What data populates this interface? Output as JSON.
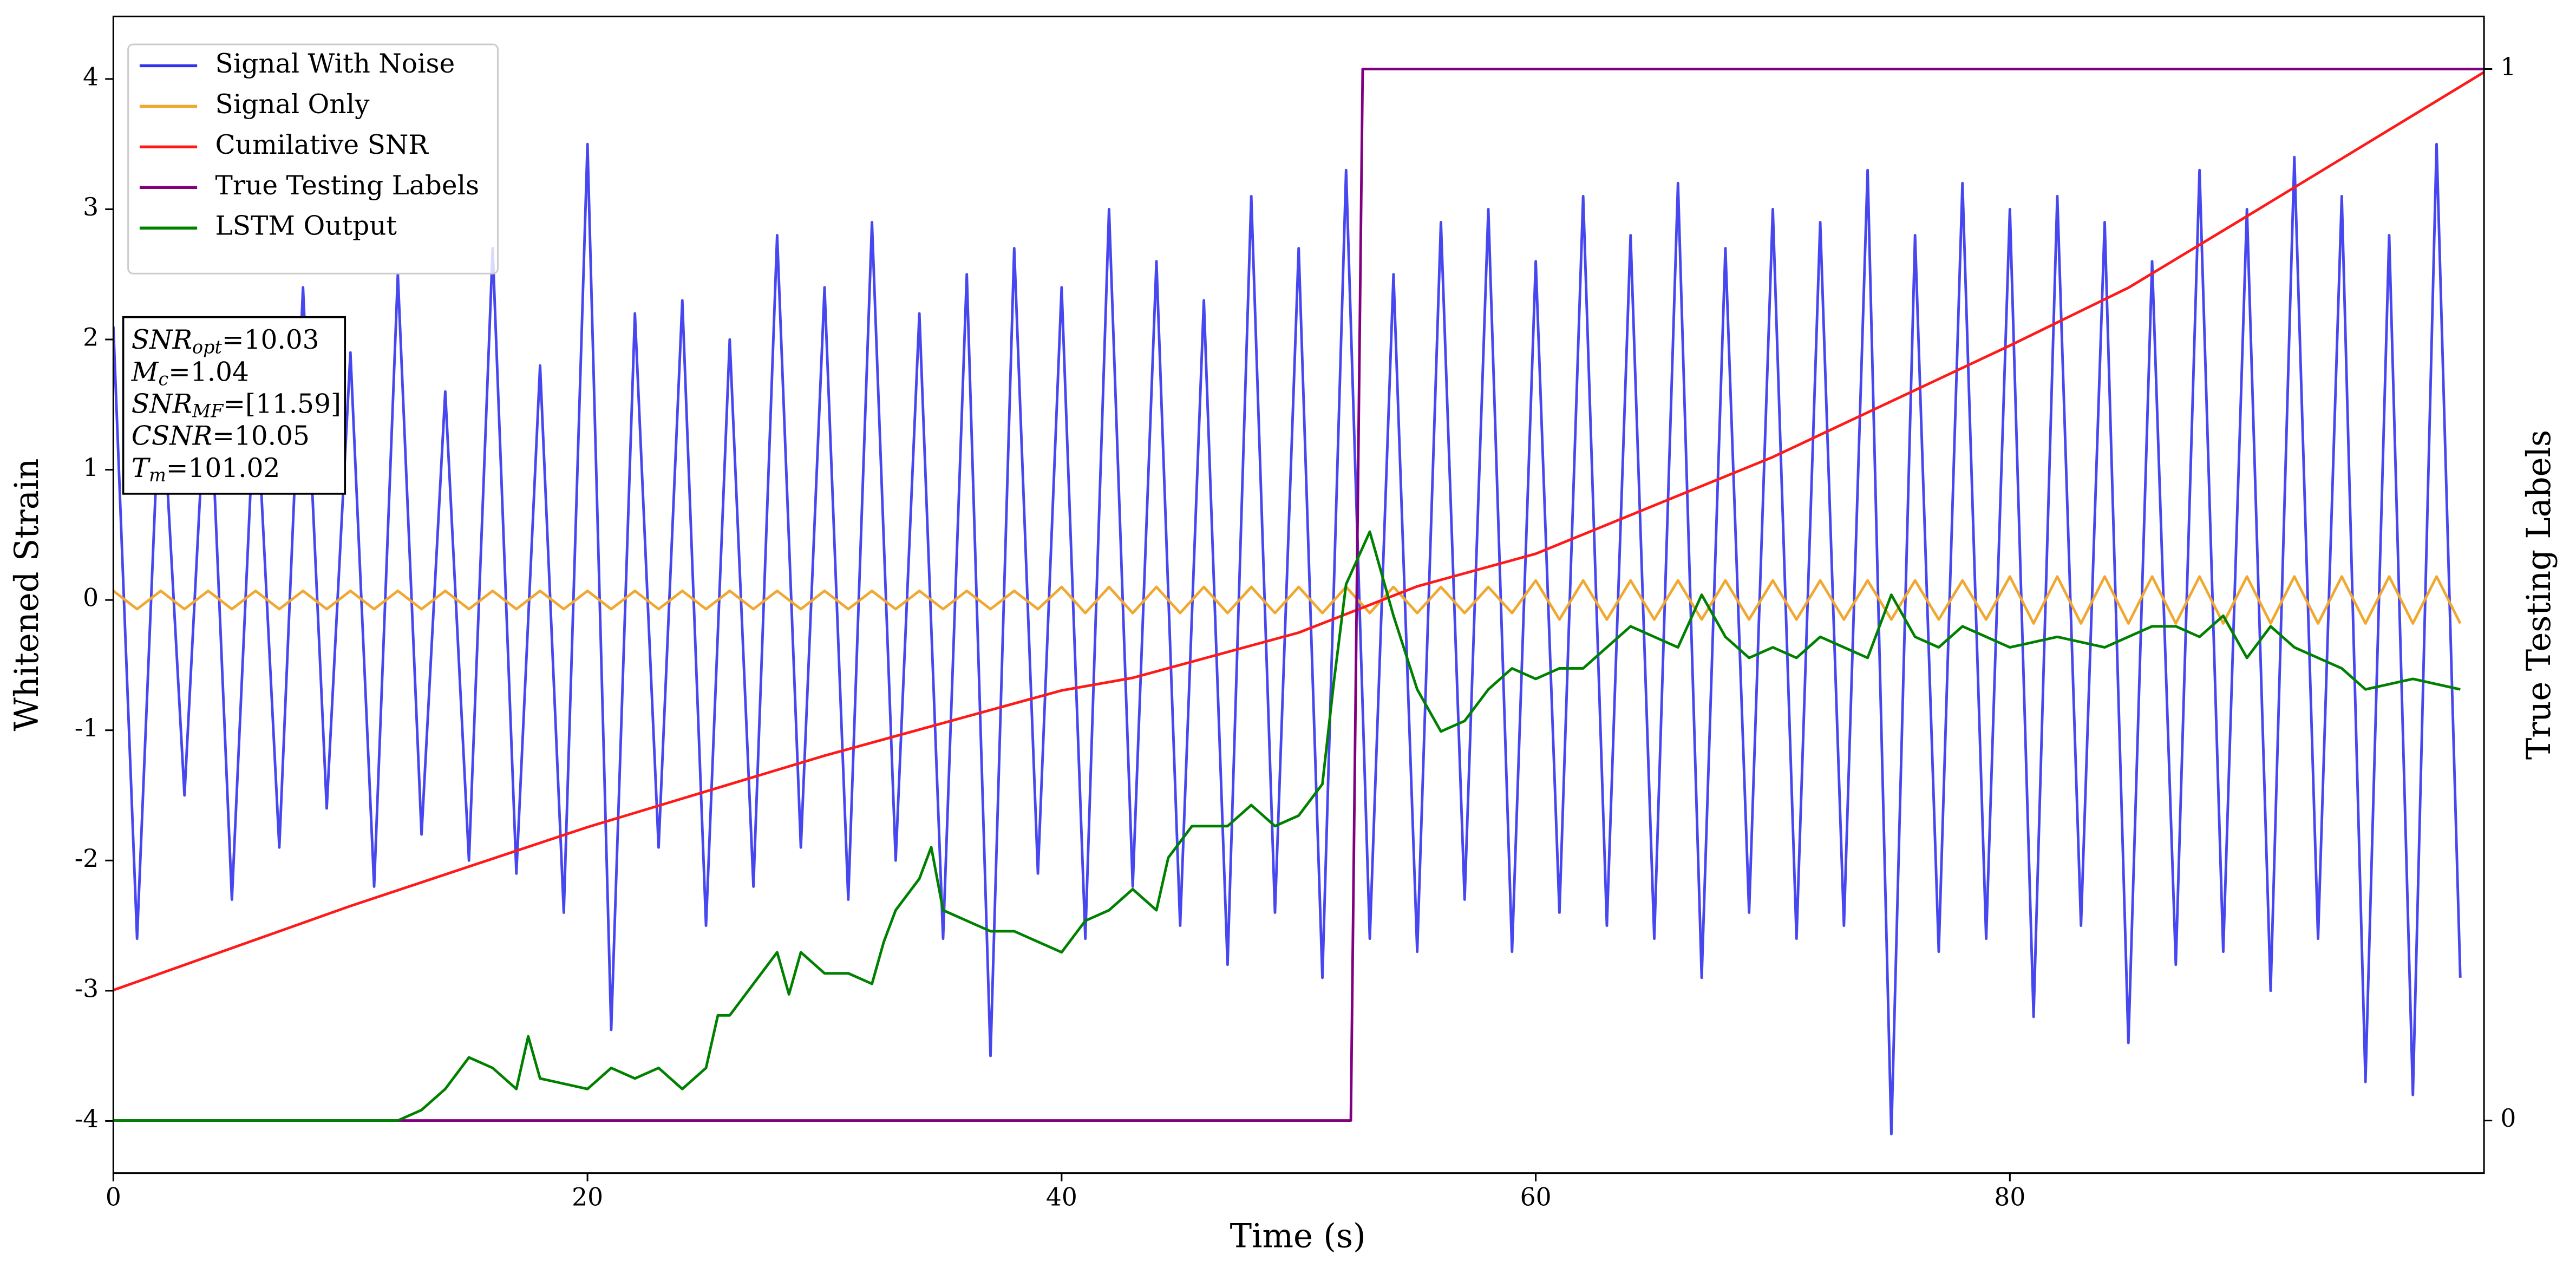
{
  "chart_data": {
    "type": "line",
    "xlabel": "Time (s)",
    "ylabel": "Whitened Strain",
    "y2label": "True Testing Labels",
    "xlim": [
      0,
      100
    ],
    "xticks": [
      0,
      20,
      40,
      60,
      80
    ],
    "ylim": [
      -4.4,
      4.48
    ],
    "yticks": [
      -4,
      -3,
      -2,
      -1,
      0,
      1,
      2,
      3,
      4
    ],
    "y2lim": [
      -0.05,
      1.05
    ],
    "y2ticks": [
      0,
      1
    ],
    "grid": false,
    "legend": "upper left",
    "annotations": [
      {
        "symbol": "SNR",
        "sub": "opt",
        "text": "=10.03"
      },
      {
        "symbol": "M",
        "sub": "c",
        "text": "=1.04"
      },
      {
        "symbol": "SNR",
        "sub": "MF",
        "text": "=[11.59]"
      },
      {
        "symbol": "CSNR",
        "text": "=10.05"
      },
      {
        "symbol": "T",
        "sub": "m",
        "text": "=101.02"
      }
    ],
    "series": [
      {
        "name": "Signal With Noise",
        "color": "#3333ee",
        "x": [
          0,
          1,
          2,
          3,
          4,
          5,
          6,
          7,
          8,
          9,
          10,
          11,
          12,
          13,
          14,
          15,
          16,
          17,
          18,
          19,
          20,
          21,
          22,
          23,
          24,
          25,
          26,
          27,
          28,
          29,
          30,
          31,
          32,
          33,
          34,
          35,
          36,
          37,
          38,
          39,
          40,
          41,
          42,
          43,
          44,
          45,
          46,
          47,
          48,
          49,
          50,
          51,
          52,
          53,
          54,
          55,
          56,
          57,
          58,
          59,
          60,
          61,
          62,
          63,
          64,
          65,
          66,
          67,
          68,
          69,
          70,
          71,
          72,
          73,
          74,
          75,
          76,
          77,
          78,
          79,
          80,
          81,
          82,
          83,
          84,
          85,
          86,
          87,
          88,
          89,
          90,
          91,
          92,
          93,
          94,
          95,
          96,
          97,
          98,
          99
        ],
        "values": [
          2.1,
          -2.6,
          1.8,
          -1.5,
          2.0,
          -2.3,
          1.7,
          -1.9,
          2.4,
          -1.6,
          1.9,
          -2.2,
          2.5,
          -1.8,
          1.6,
          -2.0,
          2.7,
          -2.1,
          1.8,
          -2.4,
          3.5,
          -3.3,
          2.2,
          -1.9,
          2.3,
          -2.5,
          2.0,
          -2.2,
          2.8,
          -1.9,
          2.4,
          -2.3,
          2.9,
          -2.0,
          2.2,
          -2.6,
          2.5,
          -3.5,
          2.7,
          -2.1,
          2.4,
          -2.6,
          3.0,
          -2.2,
          2.6,
          -2.5,
          2.3,
          -2.8,
          3.1,
          -2.4,
          2.7,
          -2.9,
          3.3,
          -2.6,
          2.5,
          -2.7,
          2.9,
          -2.3,
          3.0,
          -2.7,
          2.6,
          -2.4,
          3.1,
          -2.5,
          2.8,
          -2.6,
          3.2,
          -2.9,
          2.7,
          -2.4,
          3.0,
          -2.6,
          2.9,
          -2.5,
          3.3,
          -4.1,
          2.8,
          -2.7,
          3.2,
          -2.6,
          3.0,
          -3.2,
          3.1,
          -2.5,
          2.9,
          -3.4,
          2.6,
          -2.8,
          3.3,
          -2.7,
          3.0,
          -3.0,
          3.4,
          -2.6,
          3.1,
          -3.7,
          2.8,
          -3.8,
          3.5,
          -2.9
        ]
      },
      {
        "name": "Signal Only",
        "color": "#f0a830",
        "x": [
          0,
          1,
          2,
          3,
          4,
          5,
          6,
          7,
          8,
          9,
          10,
          11,
          12,
          13,
          14,
          15,
          16,
          17,
          18,
          19,
          20,
          21,
          22,
          23,
          24,
          25,
          26,
          27,
          28,
          29,
          30,
          31,
          32,
          33,
          34,
          35,
          36,
          37,
          38,
          39,
          40,
          41,
          42,
          43,
          44,
          45,
          46,
          47,
          48,
          49,
          50,
          51,
          52,
          53,
          54,
          55,
          56,
          57,
          58,
          59,
          60,
          61,
          62,
          63,
          64,
          65,
          66,
          67,
          68,
          69,
          70,
          71,
          72,
          73,
          74,
          75,
          76,
          77,
          78,
          79,
          80,
          81,
          82,
          83,
          84,
          85,
          86,
          87,
          88,
          89,
          90,
          91,
          92,
          93,
          94,
          95,
          96,
          97,
          98,
          99
        ],
        "values": [
          0.07,
          -0.07,
          0.07,
          -0.07,
          0.07,
          -0.07,
          0.07,
          -0.07,
          0.07,
          -0.07,
          0.07,
          -0.07,
          0.07,
          -0.07,
          0.07,
          -0.07,
          0.07,
          -0.07,
          0.07,
          -0.07,
          0.07,
          -0.07,
          0.07,
          -0.07,
          0.07,
          -0.07,
          0.07,
          -0.07,
          0.07,
          -0.07,
          0.07,
          -0.07,
          0.07,
          -0.07,
          0.07,
          -0.07,
          0.07,
          -0.07,
          0.07,
          -0.07,
          0.1,
          -0.1,
          0.1,
          -0.1,
          0.1,
          -0.1,
          0.1,
          -0.1,
          0.1,
          -0.1,
          0.1,
          -0.1,
          0.1,
          -0.1,
          0.1,
          -0.1,
          0.1,
          -0.1,
          0.1,
          -0.1,
          0.15,
          -0.15,
          0.15,
          -0.15,
          0.15,
          -0.15,
          0.15,
          -0.15,
          0.15,
          -0.15,
          0.15,
          -0.15,
          0.15,
          -0.15,
          0.15,
          -0.15,
          0.15,
          -0.15,
          0.15,
          -0.15,
          0.18,
          -0.18,
          0.18,
          -0.18,
          0.18,
          -0.18,
          0.18,
          -0.18,
          0.18,
          -0.18,
          0.18,
          -0.18,
          0.18,
          -0.18,
          0.18,
          -0.18,
          0.18,
          -0.18,
          0.18,
          -0.18
        ]
      },
      {
        "name": "Cumilative SNR",
        "color": "#ff1a1a",
        "axis": "y2",
        "x": [
          0,
          10,
          20,
          30,
          40,
          43,
          50,
          55,
          60,
          70,
          80,
          85,
          90,
          100
        ],
        "values": [
          0.124,
          0.204,
          0.279,
          0.347,
          0.409,
          0.421,
          0.464,
          0.508,
          0.539,
          0.631,
          0.737,
          0.792,
          0.86,
          0.997
        ]
      },
      {
        "name": "True Testing Labels",
        "color": "#800080",
        "axis": "y2",
        "x": [
          0,
          52.2,
          52.7,
          100
        ],
        "values": [
          0,
          0,
          1,
          1
        ]
      },
      {
        "name": "LSTM Output",
        "color": "#008000",
        "axis": "y2",
        "x": [
          0,
          12,
          13,
          14,
          15,
          16,
          17,
          17.5,
          18,
          20,
          21,
          22,
          23,
          24,
          25,
          25.5,
          26,
          27,
          28,
          28.5,
          29,
          30,
          31,
          32,
          32.5,
          33,
          34,
          34.5,
          35,
          36,
          37,
          38,
          39,
          40,
          41,
          42,
          43,
          44,
          44.5,
          45.5,
          46,
          47,
          48,
          49,
          50,
          51,
          51.5,
          52,
          53,
          54,
          55,
          56,
          57,
          58,
          59,
          60,
          61,
          62,
          63,
          64,
          66,
          67,
          68,
          69,
          70,
          71,
          72,
          73,
          74,
          75,
          76,
          77,
          78,
          80,
          82,
          84,
          86,
          87,
          88,
          89,
          90,
          91,
          92,
          93,
          94,
          95,
          97,
          99
        ],
        "values": [
          0,
          0,
          0.01,
          0.03,
          0.06,
          0.05,
          0.03,
          0.08,
          0.04,
          0.03,
          0.05,
          0.04,
          0.05,
          0.03,
          0.05,
          0.1,
          0.1,
          0.13,
          0.16,
          0.12,
          0.16,
          0.14,
          0.14,
          0.13,
          0.17,
          0.2,
          0.23,
          0.26,
          0.2,
          0.19,
          0.18,
          0.18,
          0.17,
          0.16,
          0.19,
          0.2,
          0.22,
          0.2,
          0.25,
          0.28,
          0.28,
          0.28,
          0.3,
          0.28,
          0.29,
          0.32,
          0.42,
          0.51,
          0.56,
          0.48,
          0.41,
          0.37,
          0.38,
          0.41,
          0.43,
          0.42,
          0.43,
          0.43,
          0.45,
          0.47,
          0.45,
          0.5,
          0.46,
          0.44,
          0.45,
          0.44,
          0.46,
          0.45,
          0.44,
          0.5,
          0.46,
          0.45,
          0.47,
          0.45,
          0.46,
          0.45,
          0.47,
          0.47,
          0.46,
          0.48,
          0.44,
          0.47,
          0.45,
          0.44,
          0.43,
          0.41,
          0.42,
          0.41
        ]
      }
    ]
  }
}
